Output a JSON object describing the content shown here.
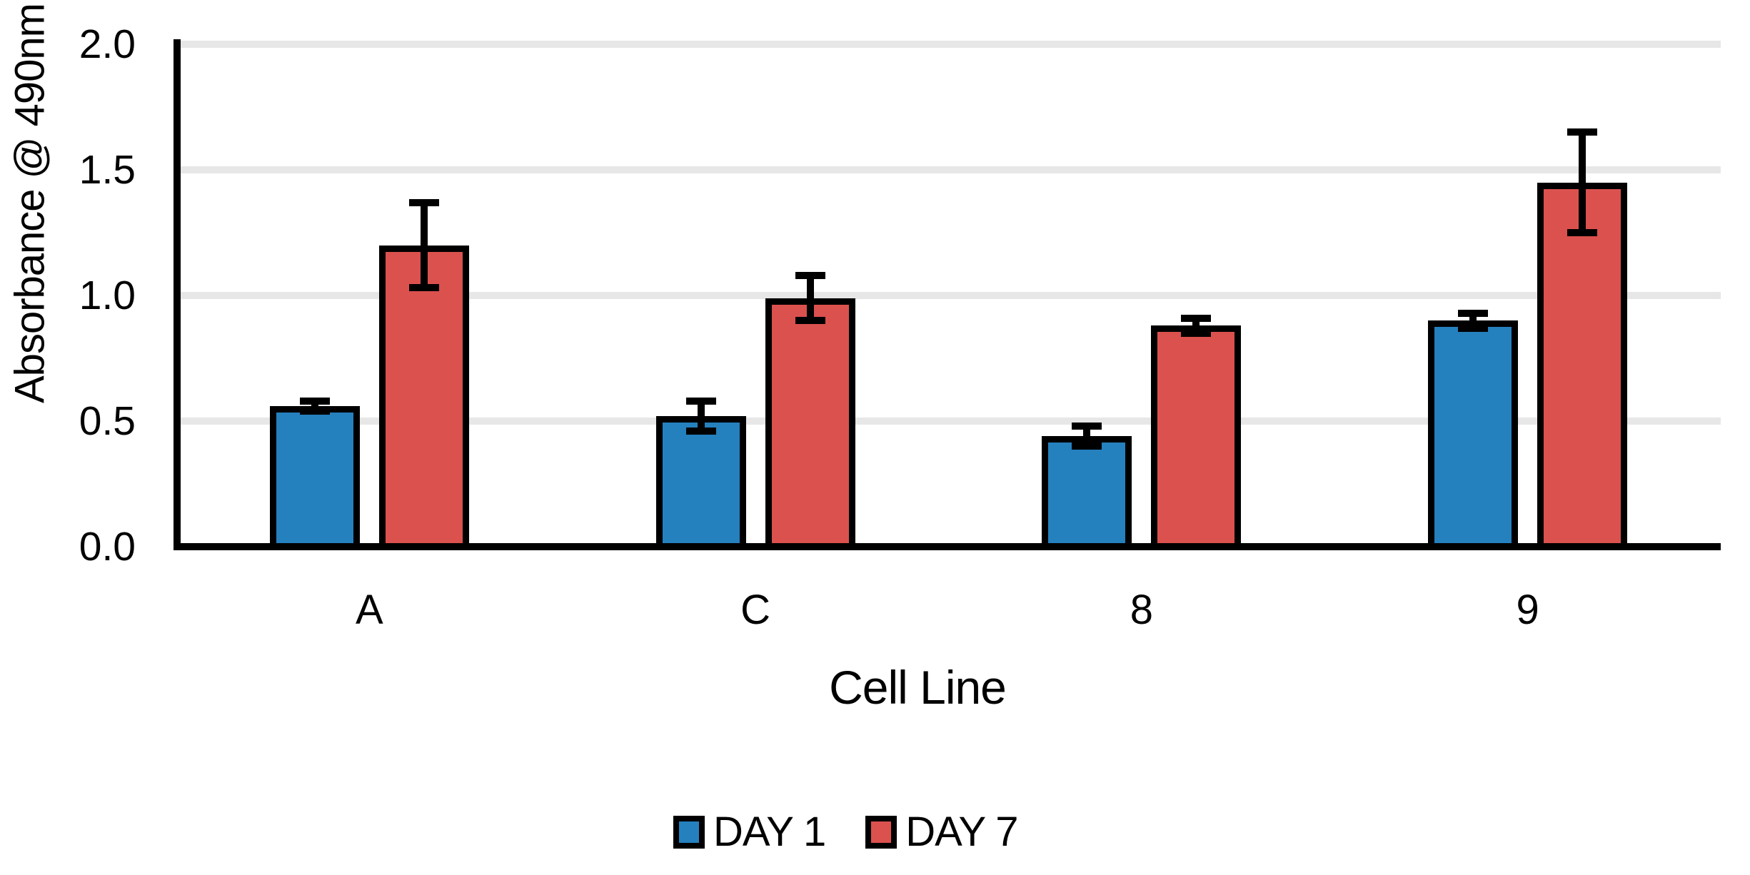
{
  "background_color": "#FFFFFF",
  "axis_color": "#000000",
  "gridline_color": "#E7E7E7",
  "chart_data": {
    "type": "bar",
    "title": "",
    "xlabel": "Cell Line",
    "ylabel": "Absorbance @ 490nm",
    "categories": [
      "A",
      "C",
      "8",
      "9"
    ],
    "series": [
      {
        "name": "DAY 1",
        "color": "#2580BE",
        "values": [
          0.56,
          0.52,
          0.44,
          0.9
        ],
        "errors": [
          0.02,
          0.06,
          0.04,
          0.03
        ]
      },
      {
        "name": "DAY 7",
        "color": "#DB514E",
        "values": [
          1.2,
          0.99,
          0.88,
          1.45
        ],
        "errors": [
          0.17,
          0.09,
          0.03,
          0.2
        ]
      }
    ],
    "ylim": [
      0.0,
      2.0
    ],
    "ytick_step": 0.5,
    "yticks": [
      "0.0",
      "0.5",
      "1.0",
      "1.5",
      "2.0"
    ],
    "grid": true,
    "error_bars": true,
    "legend_position": "bottom"
  }
}
